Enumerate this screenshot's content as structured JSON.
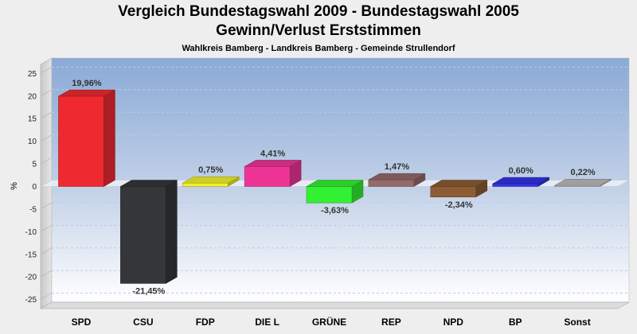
{
  "chart_data": {
    "type": "bar",
    "title": "Vergleich Bundestagswahl 2009 - Bundestagswahl 2005",
    "title2": "Gewinn/Verlust Erststimmen",
    "subtitle": "Wahlkreis Bamberg - Landkreis Bamberg - Gemeinde Strullendorf",
    "ylabel": "%",
    "ylim": [
      -27,
      27
    ],
    "yticks": [
      25,
      20,
      15,
      10,
      5,
      0,
      -5,
      -10,
      -15,
      -20,
      -25
    ],
    "grid": true,
    "categories": [
      "SPD",
      "CSU",
      "FDP",
      "DIE L",
      "GRÜNE",
      "REP",
      "NPD",
      "BP",
      "Sonst"
    ],
    "values": [
      19.96,
      -21.45,
      0.75,
      4.41,
      -3.63,
      1.47,
      -2.34,
      0.6,
      0.22
    ],
    "labels": [
      "19,96%",
      "-21,45%",
      "0,75%",
      "4,41%",
      "-3,63%",
      "1,47%",
      "-2,34%",
      "0,60%",
      "0,22%"
    ],
    "colors": [
      "#ee2a30",
      "#34363a",
      "#f2f22a",
      "#ee3596",
      "#32f032",
      "#956a6a",
      "#8c5c33",
      "#3232e6",
      "#bbbbbb"
    ]
  }
}
